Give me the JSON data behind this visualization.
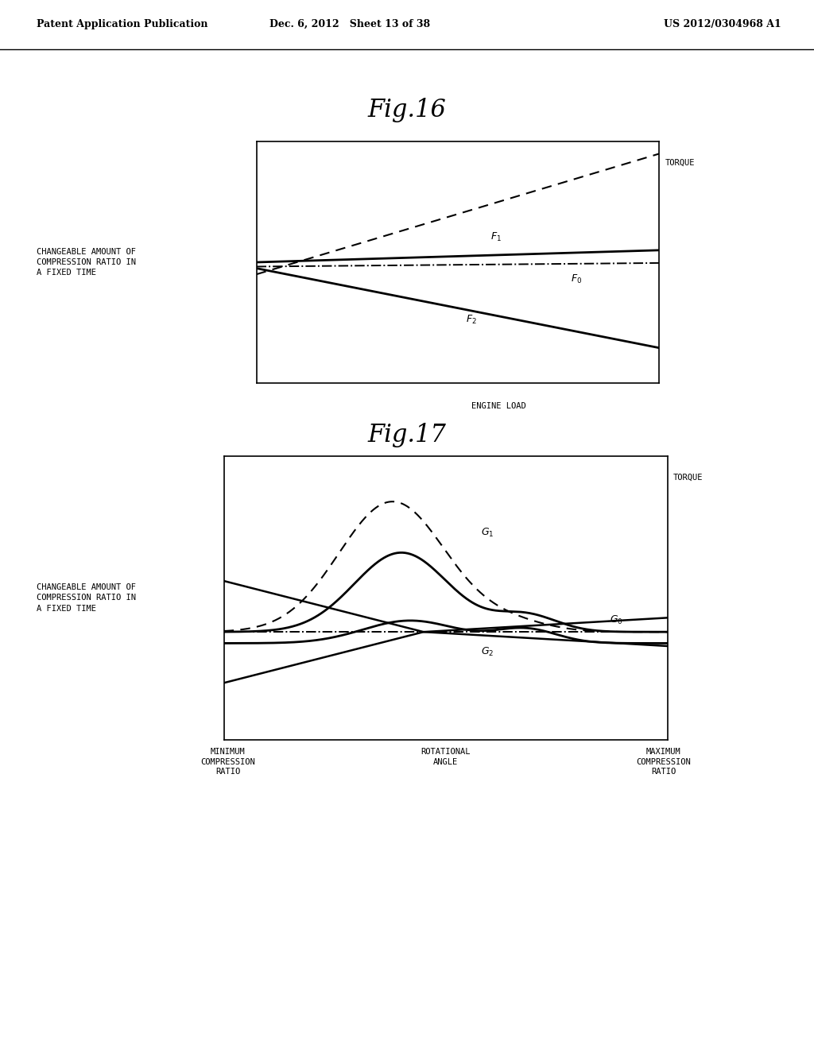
{
  "bg_color": "#ffffff",
  "header_left": "Patent Application Publication",
  "header_mid": "Dec. 6, 2012   Sheet 13 of 38",
  "header_right": "US 2012/0304968 A1",
  "fig16_title": "Fig.16",
  "fig17_title": "Fig.17",
  "fig16_ylabel": "CHANGEABLE AMOUNT OF\nCOMPRESSION RATIO IN\nA FIXED TIME",
  "fig16_xlabel": "ENGINE LOAD",
  "fig16_torque": "TORQUE",
  "fig17_ylabel": "CHANGEABLE AMOUNT OF\nCOMPRESSION RATIO IN\nA FIXED TIME",
  "fig17_torque": "TORQUE",
  "fig17_xmin_label": "MINIMUM\nCOMPRESSION\nRATIO",
  "fig17_xmid_label": "ROTATIONAL\nANGLE",
  "fig17_xmax_label": "MAXIMUM\nCOMPRESSION\nRATIO"
}
